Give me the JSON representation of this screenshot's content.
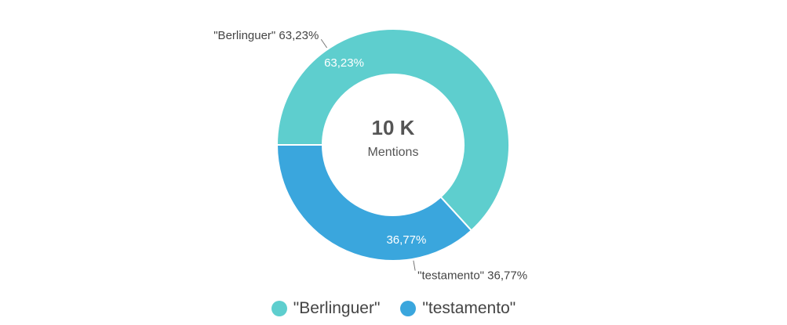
{
  "chart_data": {
    "type": "pie",
    "variant": "donut",
    "center": {
      "value": "10 K",
      "label": "Mentions"
    },
    "slices": [
      {
        "name": "\"Berlinguer\"",
        "value": 63.23,
        "percent_label": "63,23%",
        "outer_label": "\"Berlinguer\" 63,23%",
        "color": "#5ecece"
      },
      {
        "name": "\"testamento\"",
        "value": 36.77,
        "percent_label": "36,77%",
        "outer_label": "\"testamento\" 36,77%",
        "color": "#3aa6dd"
      }
    ],
    "legend_position": "bottom-center"
  }
}
